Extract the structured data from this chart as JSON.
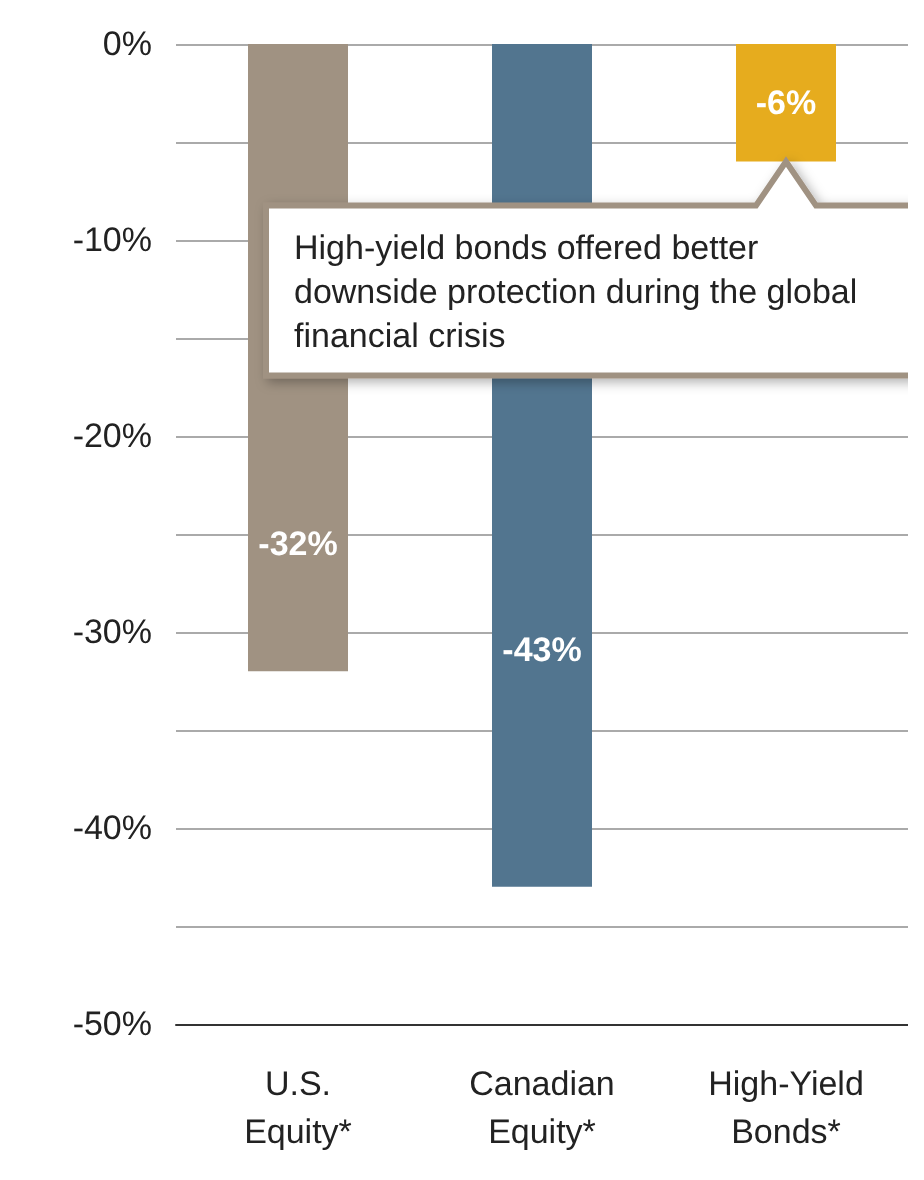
{
  "chart_data": {
    "type": "bar",
    "categories": [
      "U.S.\nEquity*",
      "Canadian\nEquity*",
      "High-Yield\nBonds*"
    ],
    "values": [
      -32,
      -43,
      -6
    ],
    "colors": [
      "#a09282",
      "#52758f",
      "#e6ac1e"
    ],
    "value_labels": [
      "-32%",
      "-43%",
      "-6%"
    ],
    "ylim": [
      -50,
      0
    ],
    "yticks": [
      {
        "value": -50,
        "label": "-50%"
      },
      {
        "value": -45,
        "label": null
      },
      {
        "value": -40,
        "label": "-40%"
      },
      {
        "value": -35,
        "label": null
      },
      {
        "value": -30,
        "label": "-30%"
      },
      {
        "value": -25,
        "label": null
      },
      {
        "value": -20,
        "label": "-20%"
      },
      {
        "value": -15,
        "label": null
      },
      {
        "value": -10,
        "label": "-10%"
      },
      {
        "value": -5,
        "label": null
      },
      {
        "value": 0,
        "label": "0%"
      }
    ],
    "grid": "y",
    "annotations": [
      {
        "text": "High-yield bonds offered better downside protection during the global financial crisis",
        "x": "High-Yield\nBonds*",
        "y": -6
      }
    ]
  }
}
